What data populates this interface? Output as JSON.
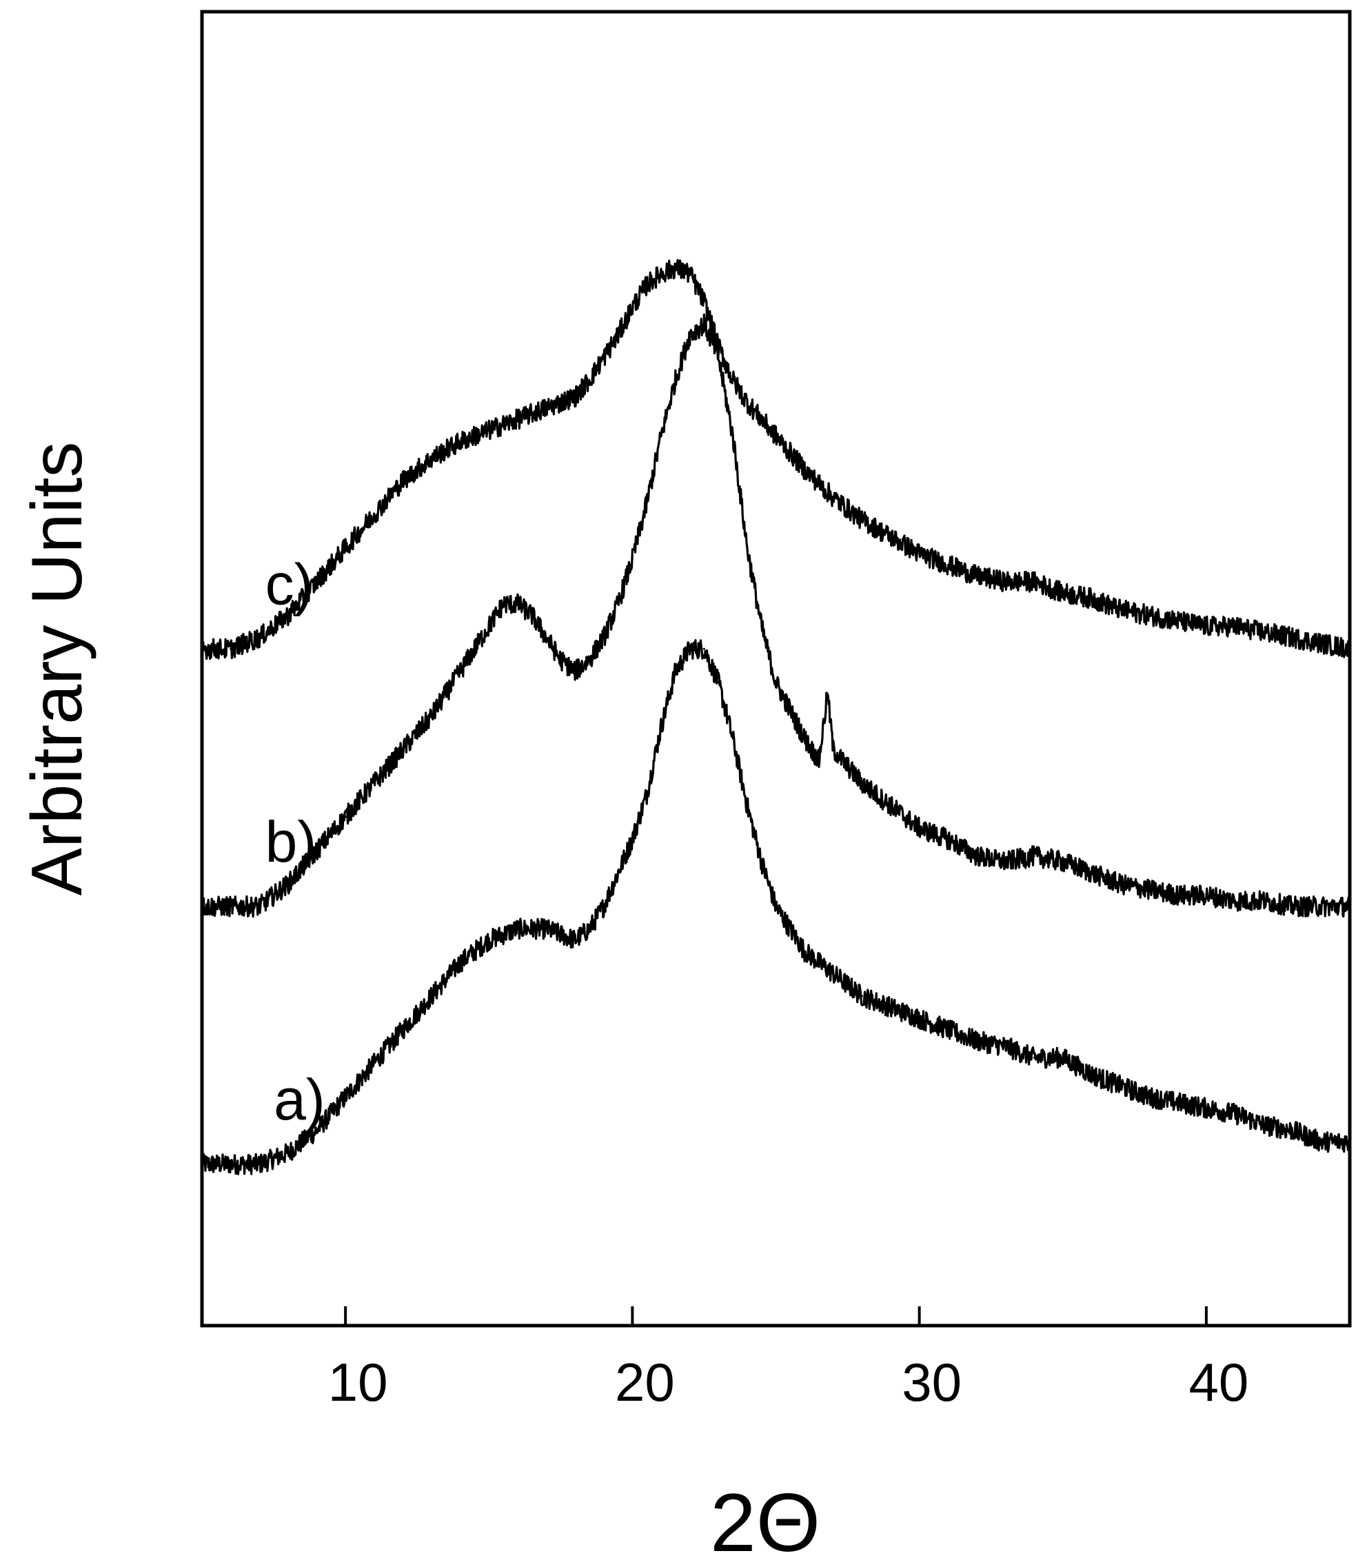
{
  "chart_data": {
    "type": "line",
    "title": "",
    "xlabel": "2Θ",
    "ylabel": "Arbitrary Units",
    "xlim": [
      5,
      45
    ],
    "ylim": [
      0,
      100
    ],
    "xticks": [
      10,
      20,
      30,
      40
    ],
    "yticks_shown": false,
    "grid": false,
    "legend": "none",
    "line_color": "#000000",
    "series": [
      {
        "name": "a)",
        "x": [
          5,
          7,
          8,
          9,
          10,
          11,
          12,
          13,
          14,
          15,
          16,
          17,
          18,
          18.5,
          19,
          19.5,
          20,
          20.5,
          21,
          21.5,
          22,
          22.5,
          23,
          23.5,
          24,
          24.5,
          25,
          26,
          27,
          28,
          29,
          30,
          31,
          32,
          33,
          34,
          35,
          36,
          37,
          38,
          39,
          40,
          41,
          42,
          43,
          44,
          45
        ],
        "y": [
          9,
          9,
          10,
          12,
          15,
          18,
          21,
          24,
          27,
          29,
          30,
          30,
          29,
          30,
          32,
          35,
          38,
          42,
          48,
          53,
          55,
          55,
          52,
          47,
          41,
          36,
          32,
          28,
          26,
          24,
          23,
          22,
          21,
          20,
          19.5,
          18.5,
          18.5,
          17,
          16,
          15,
          14.5,
          14,
          13.5,
          12.5,
          12,
          11,
          11
        ]
      },
      {
        "name": "b)",
        "x": [
          5,
          7,
          8,
          9,
          10,
          11,
          12,
          13,
          14,
          15,
          15.5,
          16,
          16.5,
          17,
          17.5,
          18,
          18.5,
          19,
          19.5,
          20,
          20.5,
          21,
          21.5,
          22,
          22.5,
          23,
          23.5,
          24,
          24.5,
          25,
          26,
          26.5,
          26.8,
          27,
          28,
          29,
          30,
          31,
          32,
          33,
          34,
          35,
          36,
          37,
          38,
          39,
          40,
          41,
          42,
          43,
          44,
          45
        ],
        "y": [
          32,
          32,
          34,
          37,
          40,
          43,
          46,
          49,
          53,
          57,
          59,
          59,
          58,
          56,
          54,
          53,
          54,
          56,
          59,
          63,
          68,
          74,
          79,
          83,
          84,
          81,
          74,
          64,
          57,
          52,
          47,
          45,
          51,
          46,
          43,
          41,
          39,
          38,
          36.5,
          36,
          36.5,
          36,
          35,
          34,
          33.5,
          33,
          33,
          32.5,
          32.5,
          32,
          32,
          32
        ]
      },
      {
        "name": "c)",
        "x": [
          5,
          6,
          7,
          8,
          9,
          10,
          11,
          12,
          13,
          14,
          15,
          16,
          17,
          18,
          18.5,
          19,
          19.5,
          20,
          20.5,
          21,
          21.5,
          22,
          22.5,
          23,
          23.5,
          24,
          25,
          26,
          27,
          28,
          29,
          30,
          31,
          32,
          33,
          34,
          35,
          36,
          37,
          38,
          39,
          40,
          41,
          42,
          43,
          44,
          45
        ],
        "y": [
          55,
          55,
          56,
          58,
          61,
          64,
          67,
          70,
          72,
          73.5,
          74.5,
          75.5,
          76.5,
          77.5,
          79,
          81,
          83,
          85.5,
          87.5,
          88.5,
          89,
          88.5,
          86,
          82,
          79,
          77,
          74,
          71,
          68.5,
          66.5,
          65,
          63.5,
          62.5,
          61.5,
          61,
          61,
          60,
          59.5,
          58.5,
          58,
          57.5,
          57,
          57,
          56.5,
          56,
          55.5,
          55
        ]
      }
    ],
    "annotations": [
      {
        "text": "a)",
        "x": 7.5,
        "y": 13
      },
      {
        "text": "b)",
        "x": 7.2,
        "y": 36
      },
      {
        "text": "c)",
        "x": 7.2,
        "y": 59
      }
    ]
  }
}
